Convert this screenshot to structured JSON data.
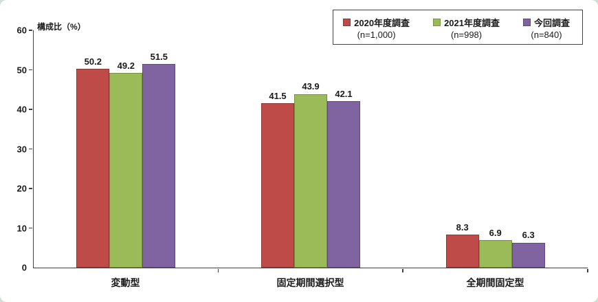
{
  "page": {
    "background_color": "#cfe0d6",
    "card_color": "#ffffff"
  },
  "chart_data": {
    "type": "bar",
    "title": "",
    "ylabel": "構成比（%）",
    "xlabel": "",
    "categories": [
      "変動型",
      "固定期間選択型",
      "全期間固定型"
    ],
    "series": [
      {
        "name": "2020年度調査",
        "n_label": "(n=1,000)",
        "color": "#be4b48",
        "border_color": "#8c3734",
        "values": [
          50.2,
          41.5,
          8.3
        ]
      },
      {
        "name": "2021年度調査",
        "n_label": "(n=998)",
        "color": "#9bbb59",
        "border_color": "#76923c",
        "values": [
          49.2,
          43.9,
          6.9
        ]
      },
      {
        "name": "今回調査",
        "n_label": "(n=840)",
        "color": "#8064a2",
        "border_color": "#5f497a",
        "values": [
          51.5,
          42.1,
          6.3
        ]
      }
    ],
    "ylim": [
      0,
      60
    ],
    "yticks": [
      0,
      10,
      20,
      30,
      40,
      50,
      60
    ],
    "grid": false,
    "legend_position": "top-right"
  }
}
